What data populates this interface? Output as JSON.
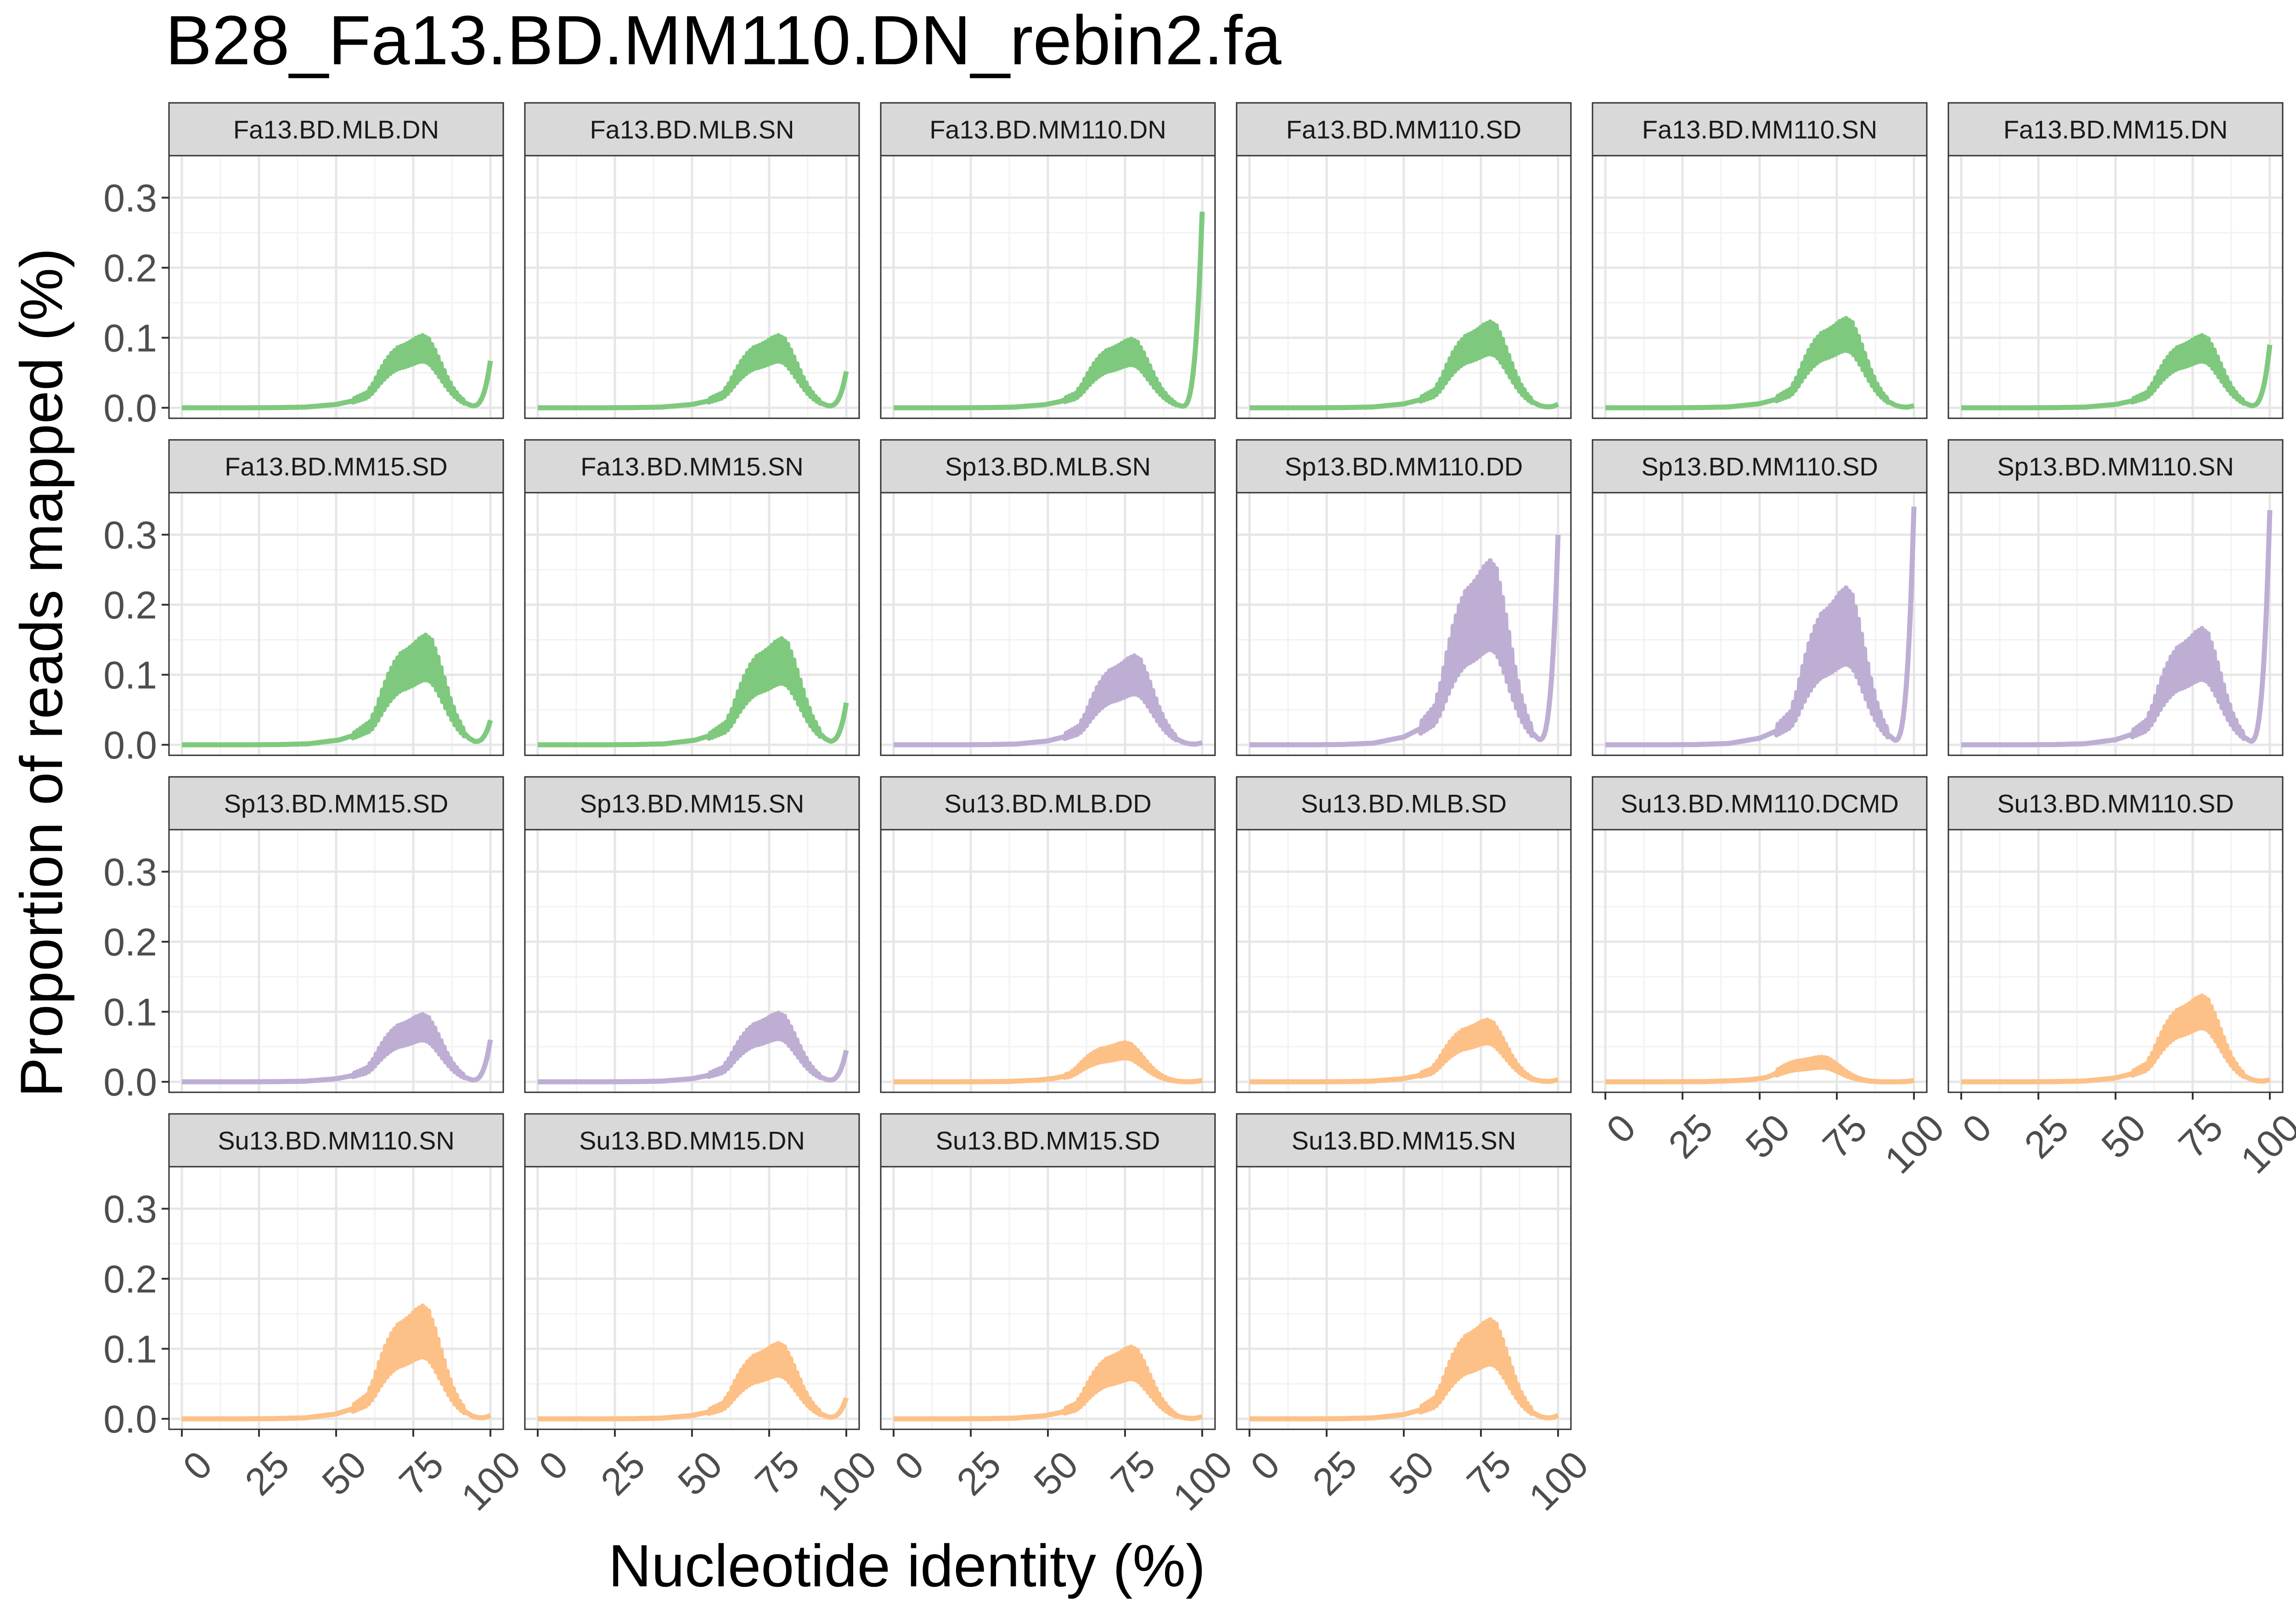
{
  "chart_data": {
    "type": "line",
    "title": "B28_Fa13.BD.MM110.DN_rebin2.fa",
    "xlabel": "Nucleotide identity (%)",
    "ylabel": "Proportion of reads mapped (%)",
    "xlim": [
      0,
      100
    ],
    "ylim": [
      0,
      0.35
    ],
    "x_ticks": [
      "0",
      "25",
      "50",
      "75",
      "100"
    ],
    "y_ticks": [
      "0.0",
      "0.1",
      "0.2",
      "0.3"
    ],
    "grid": true,
    "facet_layout": "wrap, 6 columns",
    "group_colors": {
      "Fa": "#7fc97f",
      "Sp": "#beaed4",
      "Su": "#fdc086"
    },
    "series_shape": {
      "x": [
        0,
        10,
        20,
        30,
        40,
        50,
        55,
        60,
        62,
        64,
        66,
        68,
        70,
        72,
        74,
        76,
        78,
        80,
        82,
        84,
        86,
        88,
        90,
        92,
        94,
        96,
        98,
        100
      ],
      "profile_fraction": [
        0.0,
        0.0,
        0.0,
        0.002,
        0.01,
        0.05,
        0.1,
        0.19,
        0.3,
        0.45,
        0.58,
        0.68,
        0.75,
        0.78,
        0.82,
        0.87,
        0.9,
        0.86,
        0.72,
        0.55,
        0.38,
        0.24,
        0.14,
        0.07,
        0.03,
        0.01,
        0.0,
        0.0
      ]
    },
    "panels": [
      {
        "name": "Fa13.BD.MLB.DN",
        "group": "Fa",
        "peak_x": 78,
        "peak_y": 0.085,
        "band": 0.02,
        "end_y": 0.067
      },
      {
        "name": "Fa13.BD.MLB.SN",
        "group": "Fa",
        "peak_x": 78,
        "peak_y": 0.085,
        "band": 0.02,
        "end_y": 0.052
      },
      {
        "name": "Fa13.BD.MM110.DN",
        "group": "Fa",
        "peak_x": 77,
        "peak_y": 0.08,
        "band": 0.02,
        "end_y": 0.28
      },
      {
        "name": "Fa13.BD.MM110.SD",
        "group": "Fa",
        "peak_x": 78,
        "peak_y": 0.1,
        "band": 0.025,
        "end_y": 0.005
      },
      {
        "name": "Fa13.BD.MM110.SN",
        "group": "Fa",
        "peak_x": 78,
        "peak_y": 0.105,
        "band": 0.025,
        "end_y": 0.003
      },
      {
        "name": "Fa13.BD.MM15.DN",
        "group": "Fa",
        "peak_x": 78,
        "peak_y": 0.085,
        "band": 0.02,
        "end_y": 0.09
      },
      {
        "name": "Fa13.BD.MM15.SD",
        "group": "Fa",
        "peak_x": 79,
        "peak_y": 0.125,
        "band": 0.035,
        "end_y": 0.035
      },
      {
        "name": "Fa13.BD.MM15.SN",
        "group": "Fa",
        "peak_x": 79,
        "peak_y": 0.12,
        "band": 0.035,
        "end_y": 0.06
      },
      {
        "name": "Sp13.BD.MLB.SN",
        "group": "Sp",
        "peak_x": 78,
        "peak_y": 0.1,
        "band": 0.03,
        "end_y": 0.003
      },
      {
        "name": "Sp13.BD.MM110.DD",
        "group": "Sp",
        "peak_x": 78,
        "peak_y": 0.2,
        "band": 0.07,
        "end_y": 0.3
      },
      {
        "name": "Sp13.BD.MM110.SD",
        "group": "Sp",
        "peak_x": 78,
        "peak_y": 0.17,
        "band": 0.06,
        "end_y": 0.34
      },
      {
        "name": "Sp13.BD.MM110.SN",
        "group": "Sp",
        "peak_x": 78,
        "peak_y": 0.13,
        "band": 0.04,
        "end_y": 0.335
      },
      {
        "name": "Sp13.BD.MM15.SD",
        "group": "Sp",
        "peak_x": 78,
        "peak_y": 0.078,
        "band": 0.02,
        "end_y": 0.06
      },
      {
        "name": "Sp13.BD.MM15.SN",
        "group": "Sp",
        "peak_x": 78,
        "peak_y": 0.08,
        "band": 0.02,
        "end_y": 0.045
      },
      {
        "name": "Su13.BD.MLB.DD",
        "group": "Su",
        "peak_x": 75,
        "peak_y": 0.045,
        "band": 0.012,
        "end_y": 0.002
      },
      {
        "name": "Su13.BD.MLB.SD",
        "group": "Su",
        "peak_x": 77,
        "peak_y": 0.072,
        "band": 0.018,
        "end_y": 0.003
      },
      {
        "name": "Su13.BD.MM110.DCMD",
        "group": "Su",
        "peak_x": 70,
        "peak_y": 0.028,
        "band": 0.008,
        "end_y": 0.002
      },
      {
        "name": "Su13.BD.MM110.SD",
        "group": "Su",
        "peak_x": 78,
        "peak_y": 0.1,
        "band": 0.025,
        "end_y": 0.003
      },
      {
        "name": "Su13.BD.MM110.SN",
        "group": "Su",
        "peak_x": 78,
        "peak_y": 0.125,
        "band": 0.04,
        "end_y": 0.005
      },
      {
        "name": "Su13.BD.MM15.DN",
        "group": "Su",
        "peak_x": 78,
        "peak_y": 0.085,
        "band": 0.025,
        "end_y": 0.03
      },
      {
        "name": "Su13.BD.MM15.SD",
        "group": "Su",
        "peak_x": 77,
        "peak_y": 0.08,
        "band": 0.025,
        "end_y": 0.003
      },
      {
        "name": "Su13.BD.MM15.SN",
        "group": "Su",
        "peak_x": 78,
        "peak_y": 0.11,
        "band": 0.035,
        "end_y": 0.005
      }
    ]
  }
}
